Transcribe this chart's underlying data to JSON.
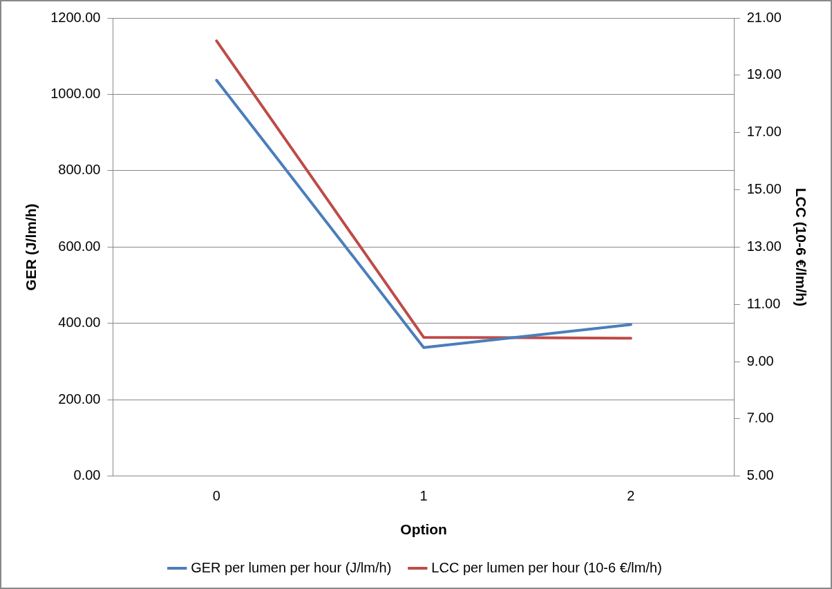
{
  "chart_data": {
    "type": "line",
    "xlabel": "Option",
    "ylabel": "GER (J/lm/h)",
    "y2label": "LCC (10-6 €/lm/h)",
    "categories": [
      "0",
      "1",
      "2"
    ],
    "series": [
      {
        "name": "GER per lumen per hour (J/lm/h)",
        "color": "#4a7ebb",
        "values": [
          1037,
          337,
          397
        ]
      },
      {
        "name": "LCC per lumen per hour (10-6 €/lm/h)",
        "color": "#be4b48",
        "values": [
          20.2,
          9.85,
          9.82
        ],
        "axis": "y2"
      }
    ],
    "ylim": [
      0,
      1200
    ],
    "yticks": [
      {
        "value": 0,
        "label": "0.00"
      },
      {
        "value": 200,
        "label": "200.00"
      },
      {
        "value": 400,
        "label": "400.00"
      },
      {
        "value": 600,
        "label": "600.00"
      },
      {
        "value": 800,
        "label": "800.00"
      },
      {
        "value": 1000,
        "label": "1000.00"
      },
      {
        "value": 1200,
        "label": "1200.00"
      }
    ],
    "y2lim": [
      5,
      21
    ],
    "y2ticks": [
      {
        "value": 5,
        "label": "5.00"
      },
      {
        "value": 7,
        "label": "7.00"
      },
      {
        "value": 9,
        "label": "9.00"
      },
      {
        "value": 11,
        "label": "11.00"
      },
      {
        "value": 13,
        "label": "13.00"
      },
      {
        "value": 15,
        "label": "15.00"
      },
      {
        "value": 17,
        "label": "17.00"
      },
      {
        "value": 19,
        "label": "19.00"
      },
      {
        "value": 21,
        "label": "21.00"
      }
    ],
    "grid": "y",
    "legend": "bottom",
    "marker": "none",
    "line_style": "solid"
  }
}
